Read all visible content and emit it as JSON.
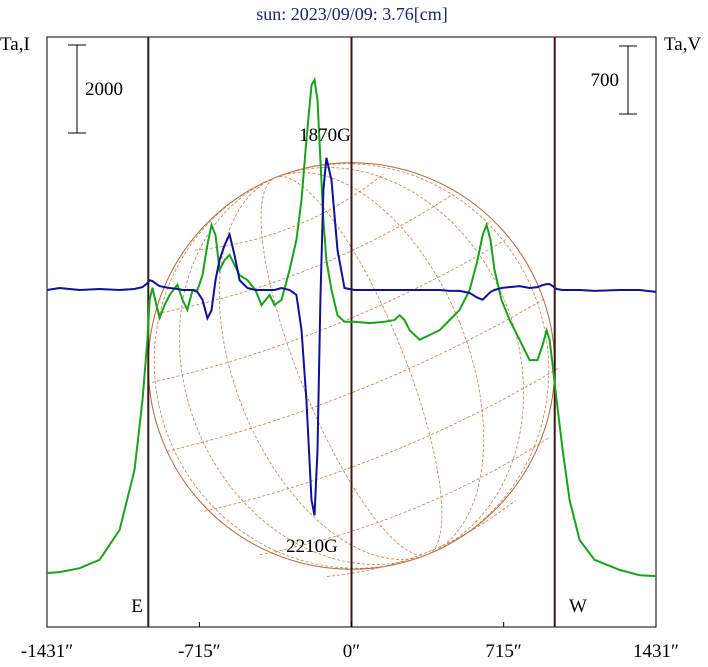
{
  "chart_data": {
    "type": "line",
    "title": "sun: 2023/09/09: 3.76[cm]",
    "ylabel": "Ta,I",
    "y2label": "Ta,V",
    "x": [
      -1431,
      -1372,
      -1278,
      -1184,
      -1090,
      -1020,
      -982,
      -959,
      -949,
      -935,
      -917,
      -902,
      -879,
      -855,
      -818,
      -794,
      -771,
      -747,
      -724,
      -700,
      -677,
      -658,
      -639,
      -620,
      -597,
      -573,
      -550,
      -526,
      -489,
      -451,
      -423,
      -385,
      -362,
      -329,
      -291,
      -259,
      -235,
      -212,
      -188,
      -174,
      -160,
      -146,
      -132,
      -118,
      -94,
      -66,
      -33,
      14,
      85,
      155,
      202,
      226,
      249,
      273,
      320,
      367,
      414,
      461,
      508,
      555,
      592,
      616,
      635,
      653,
      672,
      705,
      743,
      790,
      837,
      874,
      898,
      917,
      931,
      945,
      964,
      992,
      1025,
      1072,
      1142,
      1260,
      1354,
      1431
    ],
    "series": [
      {
        "name": "I",
        "color": "#1aa31a",
        "values": [
          0,
          20,
          110,
          300,
          980,
          2340,
          3930,
          5300,
          6210,
          6480,
          6090,
          5800,
          6090,
          6320,
          6550,
          6210,
          5980,
          6430,
          6430,
          6770,
          7460,
          7910,
          7680,
          6890,
          7110,
          7230,
          7000,
          6770,
          6660,
          6430,
          6090,
          6320,
          6090,
          6210,
          6890,
          7570,
          8480,
          9840,
          11090,
          11210,
          10750,
          9390,
          8020,
          7110,
          6430,
          5860,
          5710,
          5710,
          5680,
          5710,
          5750,
          5860,
          5750,
          5520,
          5300,
          5410,
          5520,
          5750,
          5980,
          6430,
          7110,
          7680,
          7910,
          7570,
          6890,
          6210,
          5750,
          5300,
          4840,
          4840,
          5180,
          5520,
          5300,
          4730,
          3930,
          2800,
          1660,
          750,
          300,
          70,
          -50,
          -70
        ]
      },
      {
        "name": "V",
        "color": "#10109a",
        "axis": "y2",
        "values": [
          0,
          20,
          0,
          10,
          0,
          10,
          30,
          70,
          100,
          90,
          60,
          40,
          30,
          20,
          10,
          0,
          0,
          0,
          -20,
          -100,
          -290,
          -210,
          100,
          310,
          460,
          570,
          360,
          100,
          20,
          0,
          0,
          0,
          0,
          20,
          0,
          -50,
          -410,
          -1130,
          -2160,
          -2320,
          -1650,
          -100,
          1030,
          1360,
          1130,
          410,
          20,
          0,
          0,
          0,
          0,
          0,
          0,
          0,
          0,
          0,
          0,
          -10,
          -10,
          -30,
          -80,
          -100,
          -60,
          -20,
          0,
          20,
          30,
          40,
          20,
          30,
          50,
          60,
          60,
          40,
          10,
          0,
          0,
          0,
          -10,
          0,
          0,
          -20
        ]
      }
    ],
    "xlim": [
      -1431,
      1431
    ],
    "xticks": [
      {
        "value": -1431,
        "label": "-1431″"
      },
      {
        "value": -715,
        "label": "-715″"
      },
      {
        "value": 0,
        "label": "0″"
      },
      {
        "value": 715,
        "label": "715″"
      },
      {
        "value": 1431,
        "label": "1431″"
      }
    ],
    "ylim": [
      -1227,
      12183
    ],
    "y2lim": [
      -3468,
      2603
    ],
    "scale_bars": [
      {
        "value": 2000,
        "axis": "y"
      },
      {
        "value": 700,
        "axis": "y2"
      }
    ],
    "vlines": [
      -955,
      0,
      955
    ],
    "disk_radius": 955,
    "annotations": [
      "1870G",
      "2210G",
      "E",
      "W"
    ]
  }
}
